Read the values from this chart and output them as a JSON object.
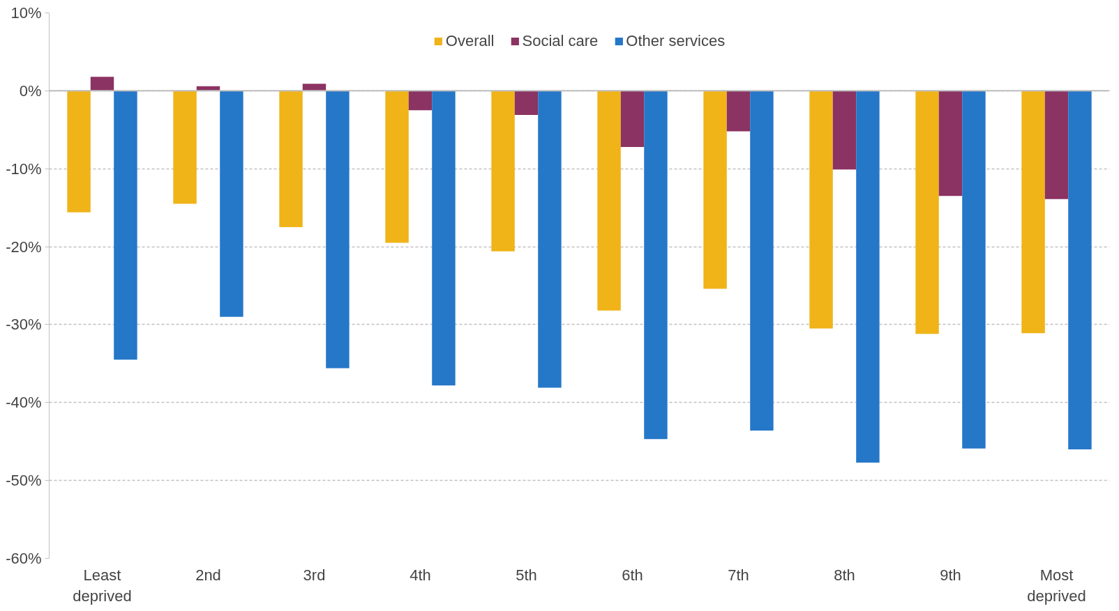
{
  "chart_data": {
    "type": "bar",
    "categories": [
      "Least deprived",
      "2nd",
      "3rd",
      "4th",
      "5th",
      "6th",
      "7th",
      "8th",
      "9th",
      "Most deprived"
    ],
    "series": [
      {
        "name": "Overall",
        "color": "#f0b418",
        "values": [
          -15.6,
          -14.5,
          -17.5,
          -19.5,
          -20.6,
          -28.2,
          -25.4,
          -30.5,
          -31.2,
          -31.1
        ]
      },
      {
        "name": "Social care",
        "color": "#8b3362",
        "values": [
          1.8,
          0.6,
          0.9,
          -2.5,
          -3.1,
          -7.2,
          -5.2,
          -10.1,
          -13.5,
          -13.9
        ]
      },
      {
        "name": "Other services",
        "color": "#2577c8",
        "values": [
          -34.5,
          -29.0,
          -35.6,
          -37.8,
          -38.1,
          -44.7,
          -43.6,
          -47.7,
          -45.9,
          -46.0
        ]
      }
    ],
    "ylim": [
      -60,
      10
    ],
    "yticks": [
      {
        "value": -60,
        "label": "-60%"
      },
      {
        "value": -50,
        "label": "-50%"
      },
      {
        "value": -40,
        "label": "-40%"
      },
      {
        "value": -30,
        "label": "-30%"
      },
      {
        "value": -20,
        "label": "-20%"
      },
      {
        "value": -10,
        "label": "-10%"
      },
      {
        "value": 0,
        "label": "0%"
      },
      {
        "value": 10,
        "label": "10%"
      }
    ],
    "grid": "y",
    "legend": "top"
  }
}
